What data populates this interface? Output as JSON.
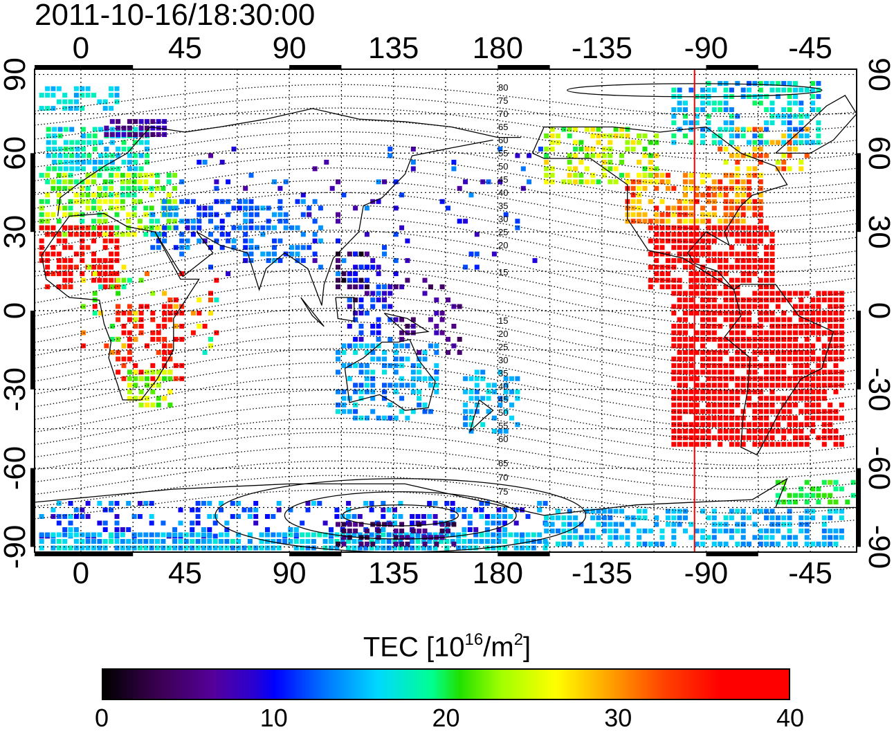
{
  "title": "2011-10-16/18:30:00",
  "map": {
    "lon_labels": [
      "0",
      "45",
      "90",
      "135",
      "180",
      "-135",
      "-90",
      "-45"
    ],
    "lon_values": [
      0,
      45,
      90,
      135,
      180,
      225,
      270,
      315
    ],
    "lat_labels": [
      "90",
      "60",
      "30",
      "0",
      "-30",
      "-60",
      "-90"
    ],
    "lat_values": [
      90,
      60,
      30,
      0,
      -30,
      -60,
      -90
    ],
    "lon_range": [
      -20,
      335
    ],
    "lat_range": [
      -92,
      92
    ],
    "grid": "dotted",
    "marker_longitude": 265,
    "marker_color": "#ff0000",
    "contour_labels_north": [
      "80",
      "75",
      "70",
      "65",
      "60",
      "55",
      "50",
      "45",
      "40",
      "35",
      "30",
      "25",
      "20",
      "15"
    ],
    "contour_labels_south": [
      "15",
      "20",
      "25",
      "30",
      "35",
      "40",
      "45",
      "50",
      "55",
      "60",
      "65",
      "70",
      "75"
    ]
  },
  "colorbar": {
    "title_prefix": "TEC  [10",
    "title_exp1": "16",
    "title_mid": "/m",
    "title_exp2": "2",
    "title_suffix": "]",
    "ticks": [
      "0",
      "10",
      "20",
      "30",
      "40"
    ],
    "tick_values": [
      0,
      10,
      20,
      30,
      40
    ],
    "range": [
      0,
      40
    ],
    "colormap": "black-purple-blue-cyan-green-yellow-red"
  },
  "colors": {
    "frame": "#000000",
    "grid": "#000000",
    "marker": "#ff0000"
  }
}
